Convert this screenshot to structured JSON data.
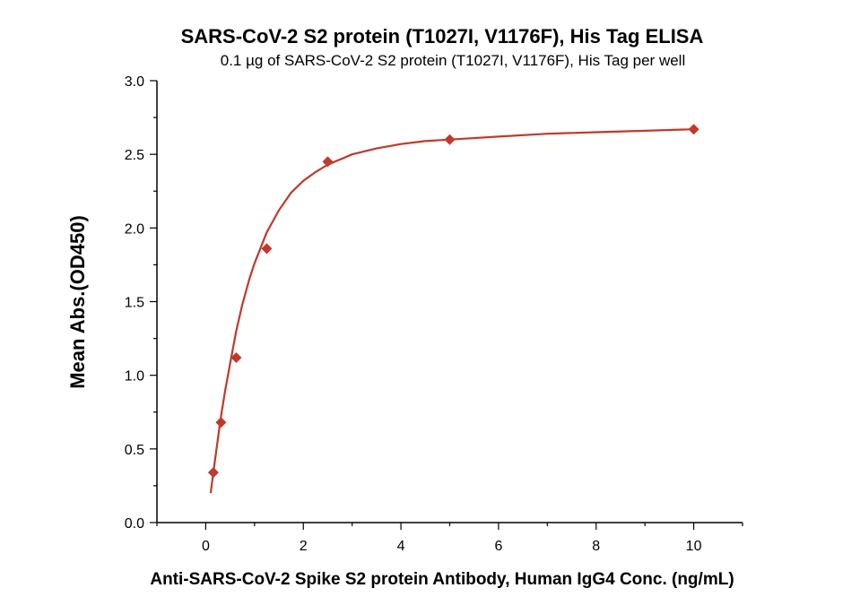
{
  "chart_data": {
    "type": "scatter",
    "title": "SARS-CoV-2 S2 protein (T1027I, V1176F), His Tag ELISA",
    "subtitle": "0.1 µg of SARS-CoV-2 S2 protein (T1027I, V1176F), His Tag per well",
    "xlabel": "Anti-SARS-CoV-2 Spike S2 protein Antibody, Human IgG4 Conc. (ng/mL)",
    "ylabel": "Mean Abs.(OD450)",
    "xlim": [
      -1,
      11
    ],
    "ylim": [
      0,
      3.0
    ],
    "x_ticks": [
      "0",
      "2",
      "4",
      "6",
      "8",
      "10"
    ],
    "y_ticks": [
      "0.0",
      "0.5",
      "1.0",
      "1.5",
      "2.0",
      "2.5",
      "3.0"
    ],
    "grid": false,
    "series": [
      {
        "color": "#c0392b",
        "marker": "diamond",
        "points": [
          {
            "x": 0.156,
            "y": 0.34
          },
          {
            "x": 0.3125,
            "y": 0.68
          },
          {
            "x": 0.625,
            "y": 1.12
          },
          {
            "x": 1.25,
            "y": 1.86
          },
          {
            "x": 2.5,
            "y": 2.45
          },
          {
            "x": 5,
            "y": 2.6
          },
          {
            "x": 10,
            "y": 2.67
          }
        ],
        "fit_curve": {
          "x": [
            0.1,
            0.156,
            0.25,
            0.3125,
            0.4,
            0.5,
            0.625,
            0.75,
            0.9,
            1.0,
            1.25,
            1.5,
            1.75,
            2.0,
            2.25,
            2.5,
            3.0,
            3.5,
            4.0,
            4.5,
            5.0,
            6.0,
            7.0,
            8.0,
            9.0,
            10.0
          ],
          "y": [
            0.2,
            0.34,
            0.57,
            0.72,
            0.9,
            1.08,
            1.3,
            1.48,
            1.66,
            1.76,
            1.97,
            2.12,
            2.24,
            2.32,
            2.38,
            2.43,
            2.5,
            2.54,
            2.57,
            2.59,
            2.6,
            2.62,
            2.64,
            2.65,
            2.66,
            2.67
          ]
        }
      }
    ]
  }
}
